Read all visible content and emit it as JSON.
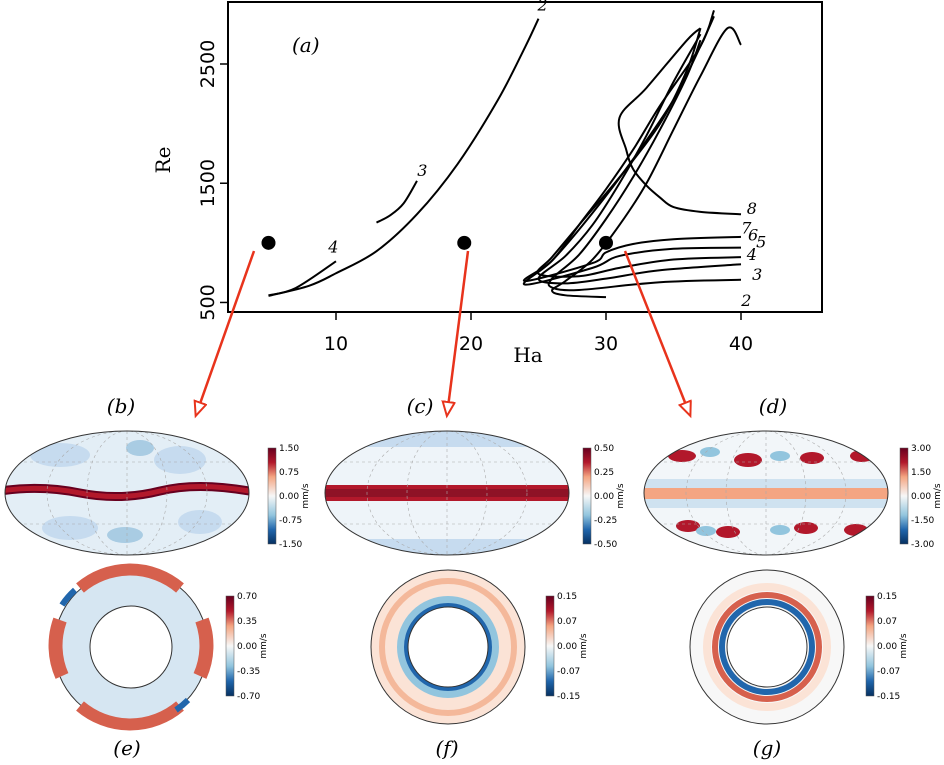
{
  "chart_data": {
    "type": "line",
    "panel_label": "(a)",
    "xlabel": "Ha",
    "ylabel": "Re",
    "xlim": [
      2,
      46
    ],
    "ylim": [
      420,
      3020
    ],
    "x_ticks": [
      10,
      20,
      30,
      40
    ],
    "y_ticks": [
      500,
      1500,
      2500
    ],
    "grid": false,
    "series": [
      {
        "name": "2",
        "points": [
          [
            5,
            555
          ],
          [
            8,
            640
          ],
          [
            10,
            745
          ],
          [
            13,
            930
          ],
          [
            16,
            1240
          ],
          [
            19,
            1660
          ],
          [
            22,
            2200
          ],
          [
            24,
            2640
          ],
          [
            25,
            2880
          ]
        ]
      },
      {
        "name": "4",
        "points": [
          [
            5,
            560
          ],
          [
            7,
            620
          ],
          [
            10,
            845
          ]
        ]
      },
      {
        "name": "3",
        "points": [
          [
            13,
            1170
          ],
          [
            14,
            1230
          ],
          [
            15,
            1330
          ],
          [
            16,
            1520
          ]
        ]
      },
      {
        "name": "2",
        "points": [
          [
            30,
            545
          ],
          [
            27,
            560
          ],
          [
            26,
            600
          ],
          [
            27,
            680
          ],
          [
            29,
            860
          ],
          [
            31,
            1150
          ],
          [
            33,
            1500
          ],
          [
            35,
            1950
          ],
          [
            37,
            2400
          ],
          [
            39,
            2800
          ],
          [
            40,
            2660
          ]
        ]
      },
      {
        "name": "3",
        "points": [
          [
            40,
            690
          ],
          [
            34,
            670
          ],
          [
            28,
            605
          ],
          [
            26,
            625
          ],
          [
            26,
            700
          ],
          [
            28,
            900
          ],
          [
            30,
            1200
          ],
          [
            32,
            1550
          ],
          [
            34,
            1950
          ],
          [
            36,
            2400
          ],
          [
            37,
            2700
          ]
        ]
      },
      {
        "name": "4",
        "points": [
          [
            40,
            820
          ],
          [
            34,
            770
          ],
          [
            30,
            700
          ],
          [
            27,
            660
          ],
          [
            25,
            700
          ],
          [
            27,
            890
          ],
          [
            29,
            1150
          ],
          [
            31,
            1500
          ],
          [
            33,
            1900
          ],
          [
            35,
            2350
          ],
          [
            37,
            2750
          ]
        ]
      },
      {
        "name": "5",
        "points": [
          [
            40,
            880
          ],
          [
            35,
            860
          ],
          [
            31,
            790
          ],
          [
            28,
            720
          ],
          [
            25,
            740
          ],
          [
            26,
            880
          ],
          [
            28,
            1150
          ],
          [
            31,
            1550
          ],
          [
            34,
            2000
          ],
          [
            36,
            2450
          ],
          [
            37,
            2800
          ]
        ]
      },
      {
        "name": "6",
        "points": [
          [
            40,
            960
          ],
          [
            35,
            950
          ],
          [
            31,
            890
          ],
          [
            29,
            790
          ],
          [
            24,
            650
          ],
          [
            26,
            850
          ],
          [
            29,
            1250
          ],
          [
            32,
            1700
          ],
          [
            35,
            2200
          ],
          [
            37,
            2650
          ],
          [
            38,
            2900
          ]
        ]
      },
      {
        "name": "7",
        "points": [
          [
            40,
            1050
          ],
          [
            35,
            1030
          ],
          [
            32,
            990
          ],
          [
            30,
            920
          ],
          [
            29,
            830
          ],
          [
            24,
            680
          ],
          [
            26,
            850
          ],
          [
            28,
            1150
          ],
          [
            30,
            1450
          ],
          [
            32,
            1780
          ],
          [
            34,
            2150
          ],
          [
            37,
            2650
          ],
          [
            38,
            2950
          ]
        ]
      },
      {
        "name": "8",
        "points": [
          [
            40,
            1240
          ],
          [
            37,
            1260
          ],
          [
            35,
            1300
          ],
          [
            34,
            1380
          ],
          [
            33,
            1480
          ],
          [
            32,
            1620
          ],
          [
            31.5,
            1780
          ],
          [
            31,
            2050
          ],
          [
            33,
            2300
          ],
          [
            36,
            2700
          ],
          [
            37,
            2800
          ]
        ]
      }
    ],
    "curve_labels": [
      {
        "text": "2",
        "x": 25.3,
        "y": 2950
      },
      {
        "text": "3",
        "x": 16.4,
        "y": 1560
      },
      {
        "text": "4",
        "x": 9.8,
        "y": 920
      },
      {
        "text": "8",
        "x": 40.8,
        "y": 1240
      },
      {
        "text": "7",
        "x": 40.4,
        "y": 1080
      },
      {
        "text": "6",
        "x": 40.9,
        "y": 1020
      },
      {
        "text": "5",
        "x": 41.5,
        "y": 960
      },
      {
        "text": "4",
        "x": 40.8,
        "y": 855
      },
      {
        "text": "3",
        "x": 41.2,
        "y": 690
      },
      {
        "text": "2",
        "x": 40.4,
        "y": 470
      }
    ],
    "markers": [
      {
        "x": 5,
        "y": 1000,
        "target": "b"
      },
      {
        "x": 19.5,
        "y": 1000,
        "target": "c"
      },
      {
        "x": 30,
        "y": 1000,
        "target": "d"
      }
    ]
  },
  "panels": {
    "b": {
      "label": "(b)",
      "unit": "mm/s",
      "ticks": [
        "1.50",
        "0.75",
        "0.00",
        "-0.75",
        "-1.50"
      ]
    },
    "c": {
      "label": "(c)",
      "unit": "mm/s",
      "ticks": [
        "0.50",
        "0.25",
        "0.00",
        "-0.25",
        "-0.50"
      ]
    },
    "d": {
      "label": "(d)",
      "unit": "mm/s",
      "ticks": [
        "3.00",
        "1.50",
        "0.00",
        "-1.50",
        "-3.00"
      ]
    },
    "e": {
      "label": "(e)",
      "unit": "mm/s",
      "ticks": [
        "0.70",
        "0.35",
        "0.00",
        "-0.35",
        "-0.70"
      ]
    },
    "f": {
      "label": "(f)",
      "unit": "mm/s",
      "ticks": [
        "0.15",
        "0.07",
        "0.00",
        "-0.07",
        "-0.15"
      ]
    },
    "g": {
      "label": "(g)",
      "unit": "mm/s",
      "ticks": [
        "0.15",
        "0.07",
        "0.00",
        "-0.07",
        "-0.15"
      ]
    }
  },
  "colors": {
    "curve": "#000000",
    "arrow": "#e8331c",
    "positive": "#b2182b",
    "negative": "#2166ac",
    "light_positive": "#f4a582",
    "light_negative": "#92c5de",
    "neutral": "#f7f7f7"
  }
}
